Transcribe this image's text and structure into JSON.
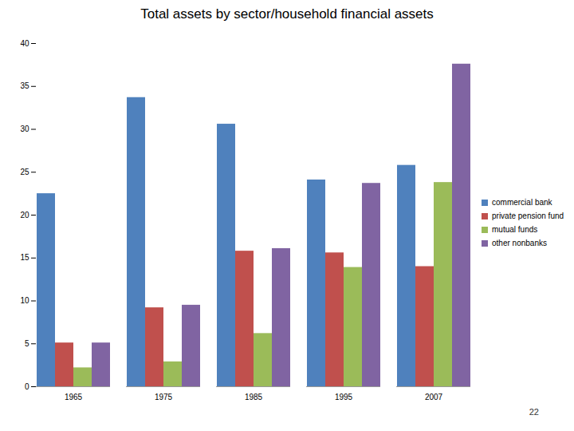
{
  "chart_data": {
    "type": "bar",
    "title": "Total assets by sector/household financial assets",
    "categories": [
      "1965",
      "1975",
      "1985",
      "1995",
      "2007"
    ],
    "series": [
      {
        "name": "commercial bank",
        "color": "#4f81bd",
        "values": [
          22.5,
          33.7,
          30.6,
          24.1,
          25.8
        ]
      },
      {
        "name": "private pension fund",
        "color": "#c0504d",
        "values": [
          5.1,
          9.2,
          15.8,
          15.6,
          14.0
        ]
      },
      {
        "name": "mutual funds",
        "color": "#9bbb59",
        "values": [
          2.2,
          2.9,
          6.2,
          13.9,
          23.8
        ]
      },
      {
        "name": "other nonbanks",
        "color": "#8064a2",
        "values": [
          5.1,
          9.5,
          16.1,
          23.7,
          37.6
        ]
      }
    ],
    "ylim": [
      0,
      40
    ],
    "yticks": [
      0,
      5,
      10,
      15,
      20,
      25,
      30,
      35,
      40
    ],
    "grid": false,
    "legend": "right",
    "annotations": [
      "22"
    ]
  }
}
